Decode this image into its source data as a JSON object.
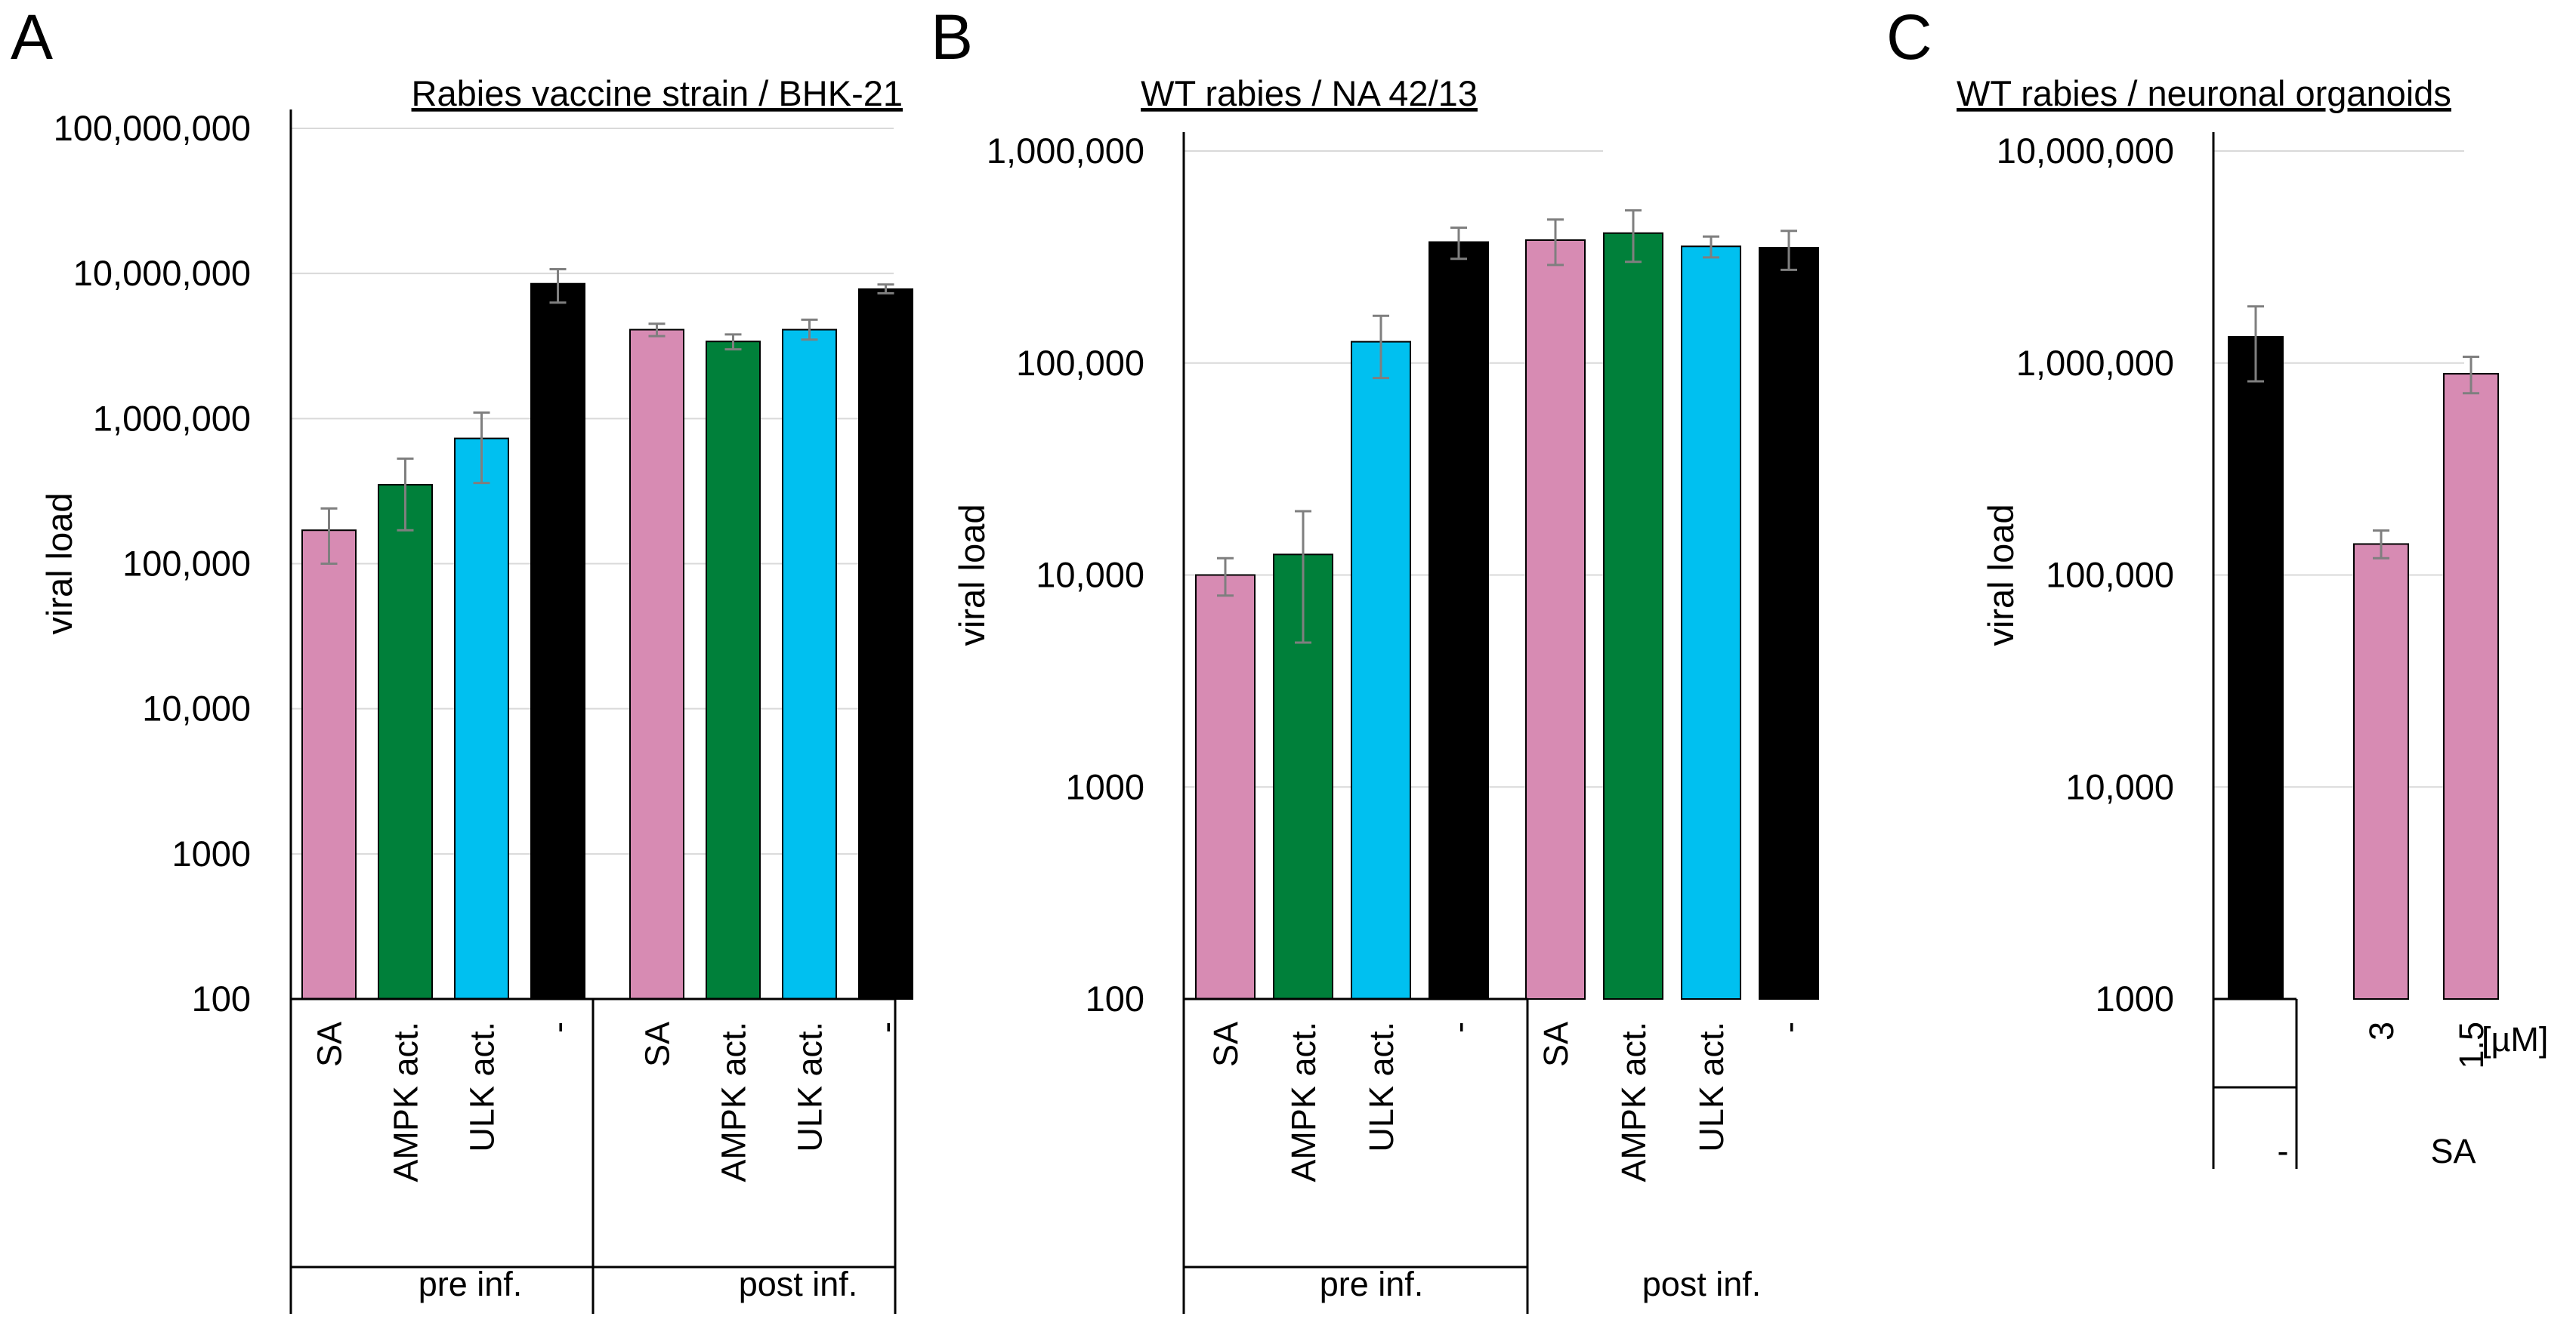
{
  "colors": {
    "SA": "#d78bb3",
    "AMPK": "#00803a",
    "ULK": "#00c0f0",
    "control": "#000000",
    "error": "#7f7f7f",
    "grid": "#d9d9d9"
  },
  "chart_data": [
    {
      "panel": "A",
      "type": "bar",
      "title": "Rabies vaccine strain / BHK-21",
      "ylabel": "viral load",
      "yscale": "log",
      "ylim": [
        100,
        100000000
      ],
      "yticks": [
        {
          "value": 100,
          "label": "100"
        },
        {
          "value": 1000,
          "label": "1000"
        },
        {
          "value": 10000,
          "label": "10,000"
        },
        {
          "value": 100000,
          "label": "100,000"
        },
        {
          "value": 1000000,
          "label": "1,000,000"
        },
        {
          "value": 10000000,
          "label": "10,000,000"
        },
        {
          "value": 100000000,
          "label": "100,000,000"
        }
      ],
      "groups": [
        {
          "label": "pre inf.",
          "bars": [
            {
              "label": "SA",
              "value": 170000,
              "err_low": 100000,
              "err_high": 240000,
              "color_key": "SA"
            },
            {
              "label": "AMPK act.",
              "value": 350000,
              "err_low": 170000,
              "err_high": 530000,
              "color_key": "AMPK"
            },
            {
              "label": "ULK act.",
              "value": 730000,
              "err_low": 360000,
              "err_high": 1100000,
              "color_key": "ULK"
            },
            {
              "label": "-",
              "value": 8500000,
              "err_low": 6300000,
              "err_high": 10700000,
              "color_key": "control"
            }
          ]
        },
        {
          "label": "post inf.",
          "bars": [
            {
              "label": "SA",
              "value": 4100000,
              "err_low": 3700000,
              "err_high": 4500000,
              "color_key": "SA"
            },
            {
              "label": "AMPK act.",
              "value": 3400000,
              "err_low": 3000000,
              "err_high": 3800000,
              "color_key": "AMPK"
            },
            {
              "label": "ULK act.",
              "value": 4100000,
              "err_low": 3500000,
              "err_high": 4800000,
              "color_key": "ULK"
            },
            {
              "label": "-",
              "value": 7800000,
              "err_low": 7300000,
              "err_high": 8400000,
              "color_key": "control"
            }
          ]
        }
      ]
    },
    {
      "panel": "B",
      "type": "bar",
      "title": "WT rabies / NA 42/13",
      "ylabel": "viral load",
      "yscale": "log",
      "ylim": [
        100,
        1000000
      ],
      "yticks": [
        {
          "value": 100,
          "label": "100"
        },
        {
          "value": 1000,
          "label": "1000"
        },
        {
          "value": 10000,
          "label": "10,000"
        },
        {
          "value": 100000,
          "label": "100,000"
        },
        {
          "value": 1000000,
          "label": "1,000,000"
        }
      ],
      "groups": [
        {
          "label": "pre inf.",
          "bars": [
            {
              "label": "SA",
              "value": 10000,
              "err_low": 8000,
              "err_high": 12000,
              "color_key": "SA"
            },
            {
              "label": "AMPK act.",
              "value": 12500,
              "err_low": 4800,
              "err_high": 20000,
              "color_key": "AMPK"
            },
            {
              "label": "ULK act.",
              "value": 126000,
              "err_low": 85000,
              "err_high": 167000,
              "color_key": "ULK"
            },
            {
              "label": "-",
              "value": 372000,
              "err_low": 310000,
              "err_high": 435000,
              "color_key": "control"
            }
          ]
        },
        {
          "label": "post inf.",
          "bars": [
            {
              "label": "SA",
              "value": 380000,
              "err_low": 290000,
              "err_high": 475000,
              "color_key": "SA"
            },
            {
              "label": "AMPK act.",
              "value": 410000,
              "err_low": 300000,
              "err_high": 525000,
              "color_key": "AMPK"
            },
            {
              "label": "ULK act.",
              "value": 355000,
              "err_low": 315000,
              "err_high": 395000,
              "color_key": "ULK"
            },
            {
              "label": "-",
              "value": 350000,
              "err_low": 275000,
              "err_high": 420000,
              "color_key": "control"
            }
          ]
        }
      ]
    },
    {
      "panel": "C",
      "type": "bar",
      "title": "WT rabies / neuronal organoids",
      "ylabel": "viral load",
      "yscale": "log",
      "ylim": [
        1000,
        10000000
      ],
      "yticks": [
        {
          "value": 1000,
          "label": "1000"
        },
        {
          "value": 10000,
          "label": "10,000"
        },
        {
          "value": 100000,
          "label": "100,000"
        },
        {
          "value": 1000000,
          "label": "1,000,000"
        },
        {
          "value": 10000000,
          "label": "10,000,000"
        }
      ],
      "unit_label": "[µM]",
      "groups": [
        {
          "label": "-",
          "bars": [
            {
              "label": "",
              "value": 1330000,
              "err_low": 820000,
              "err_high": 1850000,
              "color_key": "control"
            }
          ]
        },
        {
          "label": "SA",
          "bars": [
            {
              "label": "3",
              "value": 140000,
              "err_low": 120000,
              "err_high": 162000,
              "color_key": "SA"
            },
            {
              "label": "1.5",
              "value": 890000,
              "err_low": 720000,
              "err_high": 1070000,
              "color_key": "SA"
            }
          ]
        }
      ]
    }
  ]
}
